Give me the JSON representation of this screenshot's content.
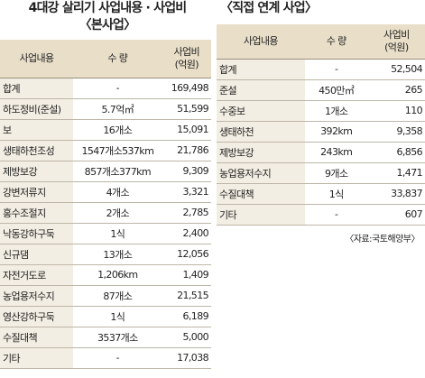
{
  "left": {
    "title": "4대강 살리기 사업내용 · 사업비",
    "subtitle": "〈본사업〉",
    "header": [
      "사업내용",
      "수  량",
      "사업비\n(억원)"
    ],
    "rows": [
      [
        "합계",
        "-",
        "169,498"
      ],
      [
        "하도정비(준설)",
        "5.7억㎥",
        "51,599"
      ],
      [
        "보",
        "16개소",
        "15,091"
      ],
      [
        "생태하천조성",
        "1547개소537km",
        "21,786"
      ],
      [
        "제방보강",
        "857개소377km",
        "9,309"
      ],
      [
        "강변저류지",
        "4개소",
        "3,321"
      ],
      [
        "홍수조절지",
        "2개소",
        "2,785"
      ],
      [
        "낙동강하구둑",
        "1식",
        "2,400"
      ],
      [
        "신규댐",
        "13개소",
        "12,056"
      ],
      [
        "자전거도로",
        "1,206km",
        "1,409"
      ],
      [
        "농업용저수지",
        "87개소",
        "21,515"
      ],
      [
        "영산강하구둑",
        "1식",
        "6,189"
      ],
      [
        "수질대책",
        "3537개소",
        "5,000"
      ],
      [
        "기타",
        "-",
        "17,038"
      ]
    ]
  },
  "right": {
    "title": "〈직접 연계 사업〉",
    "header": [
      "사업내용",
      "수  량",
      "사업비\n(억원)"
    ],
    "rows": [
      [
        "합계",
        "-",
        "52,504"
      ],
      [
        "준설",
        "450만㎥",
        "265"
      ],
      [
        "수중보",
        "1개소",
        "110"
      ],
      [
        "생태하천",
        "392km",
        "9,358"
      ],
      [
        "제방보강",
        "243km",
        "6,856"
      ],
      [
        "농업용저수지",
        "9개소",
        "1,471"
      ],
      [
        "수질대책",
        "1식",
        "33,837"
      ],
      [
        "기타",
        "-",
        "607"
      ]
    ],
    "source": "〈자료:국토해양부〉"
  }
}
